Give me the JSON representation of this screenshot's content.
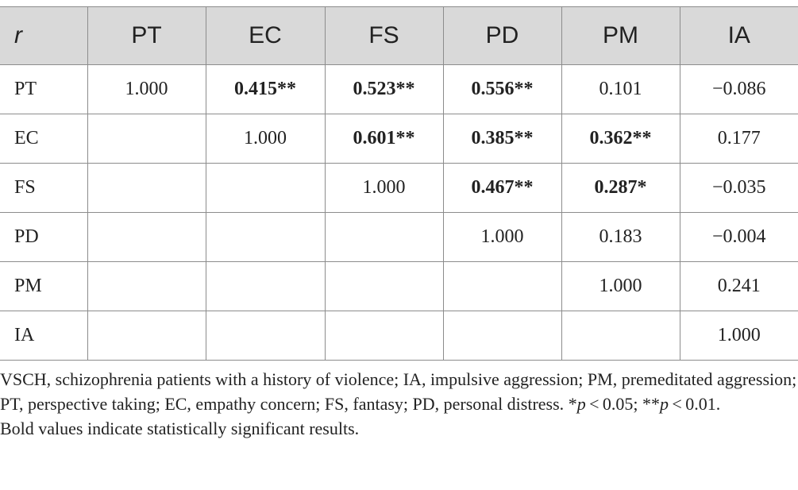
{
  "table": {
    "headers": [
      "r",
      "PT",
      "EC",
      "FS",
      "PD",
      "PM",
      "IA"
    ],
    "rows": [
      {
        "label": "PT",
        "cells": [
          {
            "value": "1.000",
            "bold": false
          },
          {
            "value": "0.415**",
            "bold": true
          },
          {
            "value": "0.523**",
            "bold": true
          },
          {
            "value": "0.556**",
            "bold": true
          },
          {
            "value": "0.101",
            "bold": false
          },
          {
            "value": "−0.086",
            "bold": false
          }
        ]
      },
      {
        "label": "EC",
        "cells": [
          {
            "value": "",
            "bold": false
          },
          {
            "value": "1.000",
            "bold": false
          },
          {
            "value": "0.601**",
            "bold": true
          },
          {
            "value": "0.385**",
            "bold": true
          },
          {
            "value": "0.362**",
            "bold": true
          },
          {
            "value": "0.177",
            "bold": false
          }
        ]
      },
      {
        "label": "FS",
        "cells": [
          {
            "value": "",
            "bold": false
          },
          {
            "value": "",
            "bold": false
          },
          {
            "value": "1.000",
            "bold": false
          },
          {
            "value": "0.467**",
            "bold": true
          },
          {
            "value": "0.287*",
            "bold": true
          },
          {
            "value": "−0.035",
            "bold": false
          }
        ]
      },
      {
        "label": "PD",
        "cells": [
          {
            "value": "",
            "bold": false
          },
          {
            "value": "",
            "bold": false
          },
          {
            "value": "",
            "bold": false
          },
          {
            "value": "1.000",
            "bold": false
          },
          {
            "value": "0.183",
            "bold": false
          },
          {
            "value": "−0.004",
            "bold": false
          }
        ]
      },
      {
        "label": "PM",
        "cells": [
          {
            "value": "",
            "bold": false
          },
          {
            "value": "",
            "bold": false
          },
          {
            "value": "",
            "bold": false
          },
          {
            "value": "",
            "bold": false
          },
          {
            "value": "1.000",
            "bold": false
          },
          {
            "value": "0.241",
            "bold": false
          }
        ]
      },
      {
        "label": "IA",
        "cells": [
          {
            "value": "",
            "bold": false
          },
          {
            "value": "",
            "bold": false
          },
          {
            "value": "",
            "bold": false
          },
          {
            "value": "",
            "bold": false
          },
          {
            "value": "",
            "bold": false
          },
          {
            "value": "1.000",
            "bold": false
          }
        ]
      }
    ]
  },
  "notes": {
    "abbrev_text": "VSCH, schizophrenia patients with a history of violence; IA, impulsive aggression; PM, premeditated aggression; PT, perspective taking; EC, empathy concern; FS, fantasy; PD, personal distress.",
    "sig_star1": " *",
    "sig_p1": "p",
    "sig_rest1": " < 0.05; **",
    "sig_p2": "p",
    "sig_rest2": " < 0.01.",
    "bold_note": "Bold values indicate statistically significant results."
  },
  "colors": {
    "header_bg": "#d9d9d9",
    "rule": "#8c8c8c",
    "text": "#222222"
  }
}
